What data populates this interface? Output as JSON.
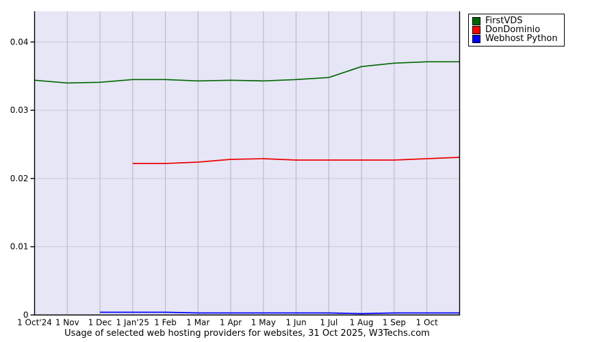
{
  "legend": {
    "items": [
      {
        "label": "FirstVDS",
        "color": "#006600"
      },
      {
        "label": "DonDominio",
        "color": "#ff0000"
      },
      {
        "label": "Webhost Python",
        "color": "#0000ff"
      }
    ]
  },
  "chart_data": {
    "type": "line",
    "title": "Usage of selected web hosting providers for websites, 31 Oct 2025, W3Techs.com",
    "xlabel": "",
    "ylabel": "",
    "x_tick_labels": [
      "1 Oct'24",
      "1 Nov",
      "1 Dec",
      "1 Jan'25",
      "1 Feb",
      "1 Mar",
      "1 Apr",
      "1 May",
      "1 Jun",
      "1 Jul",
      "1 Aug",
      "1 Sep",
      "1 Oct"
    ],
    "y_ticks": [
      0,
      0.01,
      0.02,
      0.03,
      0.04
    ],
    "y_tick_labels": [
      "0",
      "0.01",
      "0.02",
      "0.03",
      "0.04"
    ],
    "xlim": [
      0,
      13
    ],
    "ylim": [
      0,
      0.0445
    ],
    "grid": true,
    "legend_position": "top-right",
    "plot_bg": "#e6e6f6",
    "grid_color_v": "#b4b4be",
    "grid_color_h": "#c9c9d4",
    "axis_color": "#000000",
    "series": [
      {
        "name": "FirstVDS",
        "color": "#006600",
        "points": [
          [
            0,
            0.0344
          ],
          [
            1,
            0.034
          ],
          [
            2,
            0.0341
          ],
          [
            3,
            0.0345
          ],
          [
            4,
            0.0345
          ],
          [
            5,
            0.0343
          ],
          [
            6,
            0.0344
          ],
          [
            7,
            0.0343
          ],
          [
            8,
            0.0345
          ],
          [
            9,
            0.0348
          ],
          [
            10,
            0.0364
          ],
          [
            11,
            0.0369
          ],
          [
            12,
            0.0371
          ],
          [
            13,
            0.0371
          ]
        ]
      },
      {
        "name": "DonDominio",
        "color": "#ee0000",
        "points": [
          [
            3,
            0.0222
          ],
          [
            4,
            0.0222
          ],
          [
            5,
            0.0224
          ],
          [
            6,
            0.0228
          ],
          [
            7,
            0.0229
          ],
          [
            8,
            0.0227
          ],
          [
            9,
            0.0227
          ],
          [
            10,
            0.0227
          ],
          [
            11,
            0.0227
          ],
          [
            12,
            0.0229
          ],
          [
            13,
            0.0231
          ]
        ]
      },
      {
        "name": "Webhost Python",
        "color": "#0000ff",
        "points": [
          [
            2,
            0.0004
          ],
          [
            3,
            0.0004
          ],
          [
            4,
            0.0004
          ],
          [
            5,
            0.0003
          ],
          [
            6,
            0.0003
          ],
          [
            7,
            0.0003
          ],
          [
            8,
            0.0003
          ],
          [
            9,
            0.0003
          ],
          [
            10,
            0.0002
          ],
          [
            11,
            0.0003
          ],
          [
            12,
            0.0003
          ],
          [
            13,
            0.0003
          ]
        ]
      }
    ]
  }
}
